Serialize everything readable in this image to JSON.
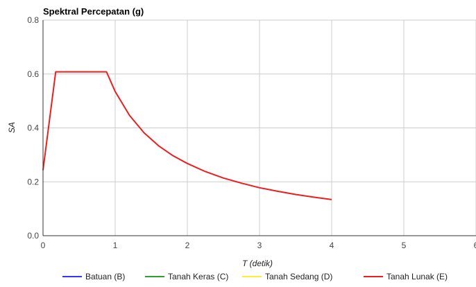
{
  "chart_data": {
    "type": "line",
    "title": "Spektral Percepatan (g)",
    "xlabel": "T (detik)",
    "ylabel": "SA",
    "xlim": [
      0,
      6
    ],
    "ylim": [
      0,
      0.8
    ],
    "x_ticks": [
      "0",
      "1",
      "2",
      "3",
      "4",
      "5",
      "6"
    ],
    "y_ticks": [
      "0.0",
      "0.2",
      "0.4",
      "0.6",
      "0.8"
    ],
    "grid": true,
    "legend_position": "bottom",
    "series": [
      {
        "name": "Batuan (B)",
        "color": "#3333ff",
        "points": []
      },
      {
        "name": "Tanah Keras (C)",
        "color": "#2ca02c",
        "points": []
      },
      {
        "name": "Tanah Sedang (D)",
        "color": "#ffee33",
        "points": []
      },
      {
        "name": "Tanah Lunak (E)",
        "color": "#ee1c1c",
        "points": [
          [
            0,
            0.243
          ],
          [
            0.176,
            0.608
          ],
          [
            0.88,
            0.608
          ],
          [
            1.0,
            0.535
          ],
          [
            1.2,
            0.446
          ],
          [
            1.4,
            0.382
          ],
          [
            1.6,
            0.334
          ],
          [
            1.8,
            0.297
          ],
          [
            2.0,
            0.268
          ],
          [
            2.25,
            0.238
          ],
          [
            2.5,
            0.214
          ],
          [
            2.75,
            0.195
          ],
          [
            3.0,
            0.178
          ],
          [
            3.25,
            0.165
          ],
          [
            3.5,
            0.153
          ],
          [
            3.75,
            0.143
          ],
          [
            4.0,
            0.134
          ]
        ]
      }
    ]
  }
}
